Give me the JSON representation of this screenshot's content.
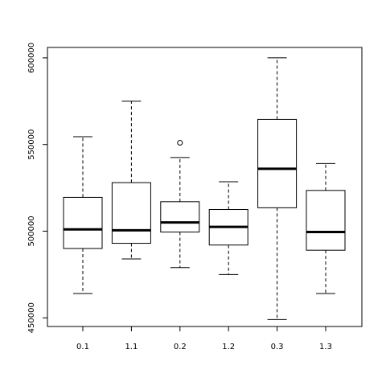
{
  "chart_data": {
    "type": "boxplot",
    "title": "",
    "xlabel": "",
    "ylabel": "",
    "categories": [
      "0.1",
      "1.1",
      "0.2",
      "1.2",
      "0.3",
      "1.3"
    ],
    "yticks": [
      {
        "value": 450000,
        "label": "450000"
      },
      {
        "value": 500000,
        "label": "500000"
      },
      {
        "value": 550000,
        "label": "550000"
      },
      {
        "value": 600000,
        "label": "600000"
      }
    ],
    "ylim": [
      445000,
      606000
    ],
    "grid": false,
    "boxes": [
      {
        "label": "0.1",
        "whisker_low": 464000,
        "q1": 490000,
        "median": 501000,
        "q3": 519500,
        "whisker_high": 554500,
        "outliers": []
      },
      {
        "label": "1.1",
        "whisker_low": 484000,
        "q1": 493000,
        "median": 500500,
        "q3": 528000,
        "whisker_high": 575000,
        "outliers": []
      },
      {
        "label": "0.2",
        "whisker_low": 479000,
        "q1": 499500,
        "median": 505000,
        "q3": 517000,
        "whisker_high": 542500,
        "outliers": [
          551000
        ]
      },
      {
        "label": "1.2",
        "whisker_low": 475000,
        "q1": 492000,
        "median": 502500,
        "q3": 512500,
        "whisker_high": 528500,
        "outliers": []
      },
      {
        "label": "0.3",
        "whisker_low": 449000,
        "q1": 513500,
        "median": 536000,
        "q3": 564500,
        "whisker_high": 600000,
        "outliers": []
      },
      {
        "label": "1.3",
        "whisker_low": 464000,
        "q1": 489000,
        "median": 499500,
        "q3": 523500,
        "whisker_high": 539000,
        "outliers": []
      }
    ]
  }
}
